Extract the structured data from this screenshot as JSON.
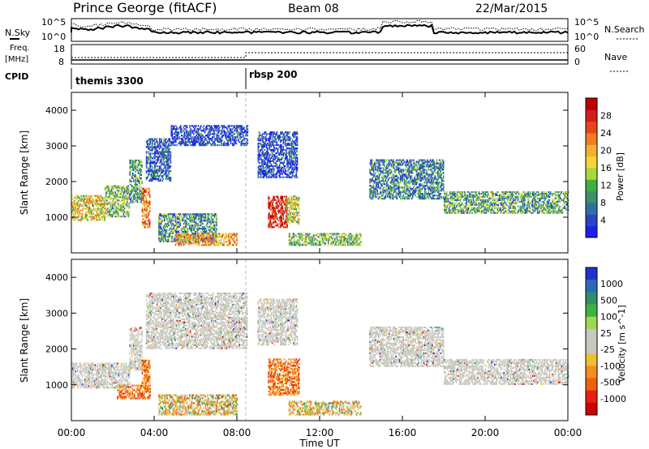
{
  "header": {
    "station": "Prince George (fitACF)",
    "beam": "Beam 08",
    "date": "22/Mar/2015"
  },
  "top_panels": {
    "left_nsky": "N.Sky",
    "left_freq_line1": "Freq.",
    "left_freq_line2": "[MHz]",
    "left_cpid": "CPID",
    "nsky_ticks": [
      "10^5",
      "10^0"
    ],
    "freq_ticks": [
      "18",
      "8"
    ],
    "right_nsearch": "N.Search",
    "right_nave": "Nave",
    "nsearch_ticks": [
      "10^5",
      "10^0"
    ],
    "nave_ticks": [
      "60",
      "0"
    ],
    "cpid_labels": [
      {
        "text": "themis 3300",
        "start_hour": 0
      },
      {
        "text": "rbsp 200",
        "start_hour": 8.5
      }
    ]
  },
  "chart_data": [
    {
      "type": "heatmap",
      "title": "",
      "xlabel": "",
      "ylabel": "Slant Range [km]",
      "xlim": [
        0,
        24
      ],
      "ylim": [
        0,
        4500
      ],
      "y_ticks": [
        "1000",
        "2000",
        "3000",
        "4000"
      ],
      "x_tick_hours": [
        0,
        4,
        8,
        12,
        16,
        20,
        24
      ],
      "colorbar": {
        "label": "Power [dB]",
        "ticks": [
          "4",
          "8",
          "12",
          "16",
          "20",
          "24",
          "28"
        ],
        "colors": [
          "#1e1ef0",
          "#2a44c8",
          "#2f6fa6",
          "#3f8f6a",
          "#3faf3f",
          "#a8d83a",
          "#f2d63a",
          "#f2b030",
          "#f07d22",
          "#e8451c",
          "#d41c1c",
          "#c00000"
        ]
      },
      "regions": [
        {
          "t0": 0.0,
          "t1": 1.6,
          "r0": 900,
          "r1": 1600,
          "level": 0.55
        },
        {
          "t0": 1.6,
          "t1": 2.8,
          "r0": 1000,
          "r1": 1900,
          "level": 0.4
        },
        {
          "t0": 2.8,
          "t1": 3.4,
          "r0": 1400,
          "r1": 2600,
          "level": 0.3
        },
        {
          "t0": 3.4,
          "t1": 3.8,
          "r0": 700,
          "r1": 1800,
          "level": 0.7
        },
        {
          "t0": 3.6,
          "t1": 4.8,
          "r0": 2000,
          "r1": 3200,
          "level": 0.15
        },
        {
          "t0": 4.8,
          "t1": 8.5,
          "r0": 3000,
          "r1": 3550,
          "level": 0.12
        },
        {
          "t0": 4.2,
          "t1": 7.0,
          "r0": 300,
          "r1": 1100,
          "level": 0.3
        },
        {
          "t0": 5.0,
          "t1": 8.0,
          "r0": 200,
          "r1": 550,
          "level": 0.65
        },
        {
          "t0": 9.0,
          "t1": 10.9,
          "r0": 2100,
          "r1": 3400,
          "level": 0.12
        },
        {
          "t0": 9.5,
          "t1": 10.4,
          "r0": 700,
          "r1": 1600,
          "level": 0.9
        },
        {
          "t0": 10.4,
          "t1": 11.0,
          "r0": 800,
          "r1": 1600,
          "level": 0.5
        },
        {
          "t0": 10.5,
          "t1": 14.0,
          "r0": 200,
          "r1": 550,
          "level": 0.4
        },
        {
          "t0": 14.4,
          "t1": 18.0,
          "r0": 1500,
          "r1": 2600,
          "level": 0.25
        },
        {
          "t0": 18.0,
          "t1": 24.0,
          "r0": 1100,
          "r1": 1700,
          "level": 0.35
        }
      ]
    },
    {
      "type": "heatmap",
      "title": "",
      "xlabel": "Time UT",
      "ylabel": "Slant Range [km]",
      "xlim": [
        0,
        24
      ],
      "ylim": [
        0,
        4500
      ],
      "y_ticks": [
        "1000",
        "2000",
        "3000",
        "4000"
      ],
      "x_ticks": [
        "00:00",
        "04:00",
        "08:00",
        "12:00",
        "16:00",
        "20:00",
        "00:00"
      ],
      "x_tick_hours": [
        0,
        4,
        8,
        12,
        16,
        20,
        24
      ],
      "colorbar": {
        "label": "Velocity [m s^-1]",
        "ticks": [
          "1000",
          "500",
          "100",
          "25",
          "-25",
          "-100",
          "-500",
          "-1000"
        ],
        "colors": [
          "#2030d0",
          "#2a6ab8",
          "#2f8f68",
          "#40b040",
          "#9cd850",
          "#c8c8c0",
          "#c8c8c0",
          "#f0c030",
          "#f09020",
          "#f06010",
          "#e82010",
          "#d00000"
        ]
      },
      "regions": [
        {
          "t0": 0.0,
          "t1": 2.8,
          "r0": 900,
          "r1": 1600,
          "kind": "ground"
        },
        {
          "t0": 2.8,
          "t1": 3.4,
          "r0": 1400,
          "r1": 2600,
          "kind": "ground"
        },
        {
          "t0": 3.4,
          "t1": 3.8,
          "r0": 800,
          "r1": 1700,
          "kind": "neg"
        },
        {
          "t0": 2.2,
          "t1": 3.8,
          "r0": 600,
          "r1": 1000,
          "kind": "neg"
        },
        {
          "t0": 3.6,
          "t1": 8.5,
          "r0": 2000,
          "r1": 3550,
          "kind": "ground"
        },
        {
          "t0": 4.2,
          "t1": 8.0,
          "r0": 150,
          "r1": 700,
          "kind": "mixed"
        },
        {
          "t0": 9.0,
          "t1": 10.9,
          "r0": 2100,
          "r1": 3400,
          "kind": "ground"
        },
        {
          "t0": 9.5,
          "t1": 11.0,
          "r0": 700,
          "r1": 1700,
          "kind": "neg"
        },
        {
          "t0": 10.5,
          "t1": 14.0,
          "r0": 150,
          "r1": 550,
          "kind": "mixed"
        },
        {
          "t0": 14.4,
          "t1": 18.0,
          "r0": 1500,
          "r1": 2600,
          "kind": "ground"
        },
        {
          "t0": 18.0,
          "t1": 24.0,
          "r0": 1000,
          "r1": 1700,
          "kind": "ground"
        }
      ]
    }
  ]
}
